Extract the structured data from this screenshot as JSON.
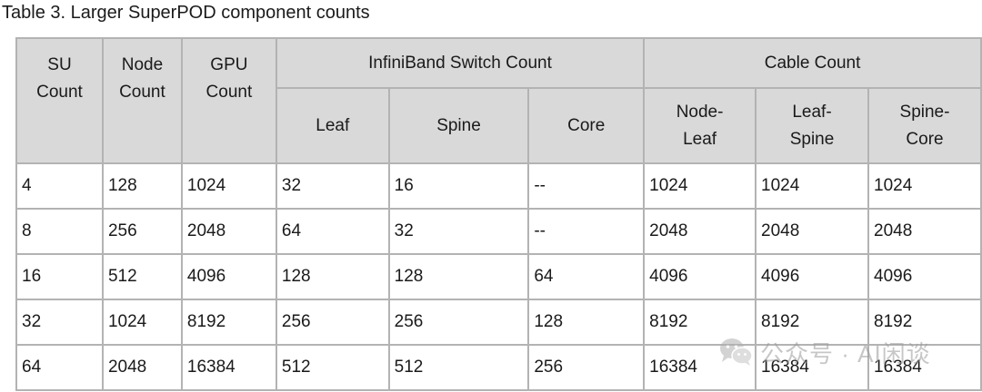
{
  "caption": "Table 3. Larger SuperPOD component counts",
  "table": {
    "headers": {
      "su_count": "SU Count",
      "node_count": "Node Count",
      "gpu_count": "GPU Count",
      "ib_switch_group": "InfiniBand Switch Count",
      "cable_group": "Cable Count",
      "leaf": "Leaf",
      "spine": "Spine",
      "core": "Core",
      "node_leaf": "Node-Leaf",
      "leaf_spine": "Leaf-Spine",
      "spine_core": "Spine-Core"
    },
    "rows": [
      [
        "4",
        "128",
        "1024",
        "32",
        "16",
        "--",
        "1024",
        "1024",
        "1024"
      ],
      [
        "8",
        "256",
        "2048",
        "64",
        "32",
        "--",
        "2048",
        "2048",
        "2048"
      ],
      [
        "16",
        "512",
        "4096",
        "128",
        "128",
        "64",
        "4096",
        "4096",
        "4096"
      ],
      [
        "32",
        "1024",
        "8192",
        "256",
        "256",
        "128",
        "8192",
        "8192",
        "8192"
      ],
      [
        "64",
        "2048",
        "16384",
        "512",
        "512",
        "256",
        "16384",
        "16384",
        "16384"
      ]
    ]
  },
  "watermark": {
    "text": "公众号 · AI闲谈",
    "icon": "wechat-icon"
  }
}
